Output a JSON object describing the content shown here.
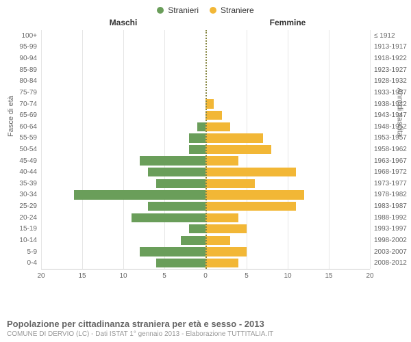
{
  "legend": {
    "male": {
      "label": "Stranieri",
      "color": "#6a9e5a"
    },
    "female": {
      "label": "Straniere",
      "color": "#f2b736"
    }
  },
  "headers": {
    "left": "Maschi",
    "right": "Femmine"
  },
  "axis_labels": {
    "left": "Fasce di età",
    "right": "Anni di nascita"
  },
  "chart": {
    "type": "population-pyramid",
    "x_max": 20,
    "x_ticks": [
      20,
      15,
      10,
      5,
      0,
      5,
      10,
      15,
      20
    ],
    "grid_positions": [
      -20,
      -15,
      -10,
      -5,
      0,
      5,
      10,
      15,
      20
    ],
    "bar_height_pct": 4.76,
    "grid_color": "#e5e5e5",
    "center_line_color": "#888844",
    "background_color": "#ffffff",
    "rows": [
      {
        "age": "100+",
        "birth": "≤ 1912",
        "male": 0,
        "female": 0
      },
      {
        "age": "95-99",
        "birth": "1913-1917",
        "male": 0,
        "female": 0
      },
      {
        "age": "90-94",
        "birth": "1918-1922",
        "male": 0,
        "female": 0
      },
      {
        "age": "85-89",
        "birth": "1923-1927",
        "male": 0,
        "female": 0
      },
      {
        "age": "80-84",
        "birth": "1928-1932",
        "male": 0,
        "female": 0
      },
      {
        "age": "75-79",
        "birth": "1933-1937",
        "male": 0,
        "female": 0
      },
      {
        "age": "70-74",
        "birth": "1938-1942",
        "male": 0,
        "female": 1
      },
      {
        "age": "65-69",
        "birth": "1943-1947",
        "male": 0,
        "female": 2
      },
      {
        "age": "60-64",
        "birth": "1948-1952",
        "male": 1,
        "female": 3
      },
      {
        "age": "55-59",
        "birth": "1953-1957",
        "male": 2,
        "female": 7
      },
      {
        "age": "50-54",
        "birth": "1958-1962",
        "male": 2,
        "female": 8
      },
      {
        "age": "45-49",
        "birth": "1963-1967",
        "male": 8,
        "female": 4
      },
      {
        "age": "40-44",
        "birth": "1968-1972",
        "male": 7,
        "female": 11
      },
      {
        "age": "35-39",
        "birth": "1973-1977",
        "male": 6,
        "female": 6
      },
      {
        "age": "30-34",
        "birth": "1978-1982",
        "male": 16,
        "female": 12
      },
      {
        "age": "25-29",
        "birth": "1983-1987",
        "male": 7,
        "female": 11
      },
      {
        "age": "20-24",
        "birth": "1988-1992",
        "male": 9,
        "female": 4
      },
      {
        "age": "15-19",
        "birth": "1993-1997",
        "male": 2,
        "female": 5
      },
      {
        "age": "10-14",
        "birth": "1998-2002",
        "male": 3,
        "female": 3
      },
      {
        "age": "5-9",
        "birth": "2003-2007",
        "male": 8,
        "female": 5
      },
      {
        "age": "0-4",
        "birth": "2008-2012",
        "male": 6,
        "female": 4
      }
    ]
  },
  "footer": {
    "title": "Popolazione per cittadinanza straniera per età e sesso - 2013",
    "subtitle": "COMUNE DI DERVIO (LC) - Dati ISTAT 1° gennaio 2013 - Elaborazione TUTTITALIA.IT"
  }
}
